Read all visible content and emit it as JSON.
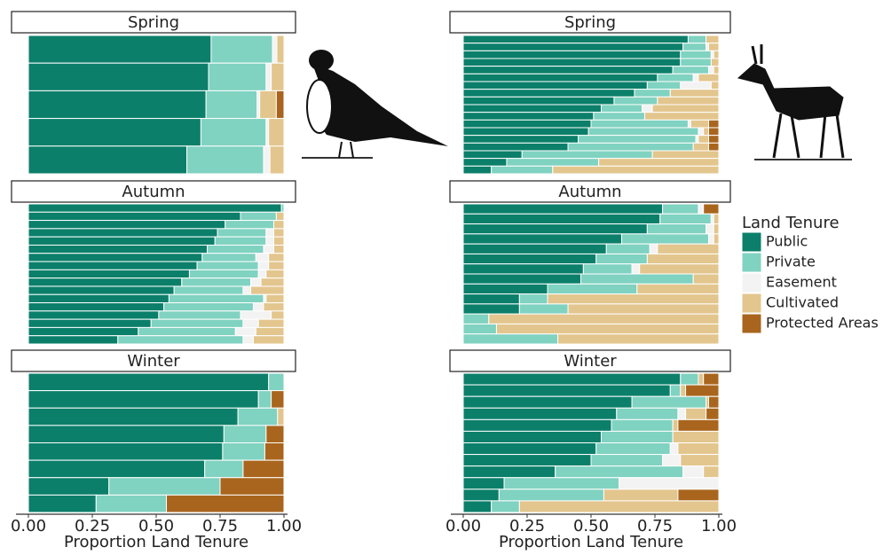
{
  "chart_data": {
    "type": "bar",
    "orientation": "horizontal",
    "stacked": true,
    "xlabel": "Proportion Land Tenure",
    "xlim": [
      0,
      1
    ],
    "xticks": [
      {
        "value": 0,
        "label": "0.00"
      },
      {
        "value": 0.25,
        "label": "0.25"
      },
      {
        "value": 0.5,
        "label": "0.50"
      },
      {
        "value": 0.75,
        "label": "0.75"
      },
      {
        "value": 1,
        "label": "1.00"
      }
    ],
    "legend_title": "Land Tenure",
    "series": [
      {
        "name": "Public",
        "color": "#0b7f6a"
      },
      {
        "name": "Private",
        "color": "#80d2c1"
      },
      {
        "name": "Easement",
        "color": "#f3f3f3"
      },
      {
        "name": "Cultivated",
        "color": "#e3c68e"
      },
      {
        "name": "Protected Areas",
        "color": "#a9651d"
      }
    ],
    "panels": [
      {
        "title": "Spring",
        "bars": [
          [
            0.715,
            0.24,
            0.017,
            0.028,
            0
          ],
          [
            0.705,
            0.225,
            0.02,
            0.05,
            0
          ],
          [
            0.695,
            0.2,
            0.01,
            0.065,
            0.03
          ],
          [
            0.675,
            0.255,
            0.01,
            0.06,
            0
          ],
          [
            0.62,
            0.3,
            0.025,
            0.055,
            0
          ]
        ]
      },
      {
        "title": "Autumn",
        "bars": [
          [
            0.99,
            0.01,
            0,
            0,
            0
          ],
          [
            0.83,
            0.14,
            0,
            0.03,
            0
          ],
          [
            0.77,
            0.19,
            0,
            0.04,
            0
          ],
          [
            0.74,
            0.19,
            0.03,
            0.04,
            0
          ],
          [
            0.73,
            0.2,
            0.03,
            0.04,
            0
          ],
          [
            0.7,
            0.22,
            0.04,
            0.04,
            0
          ],
          [
            0.68,
            0.21,
            0.05,
            0.06,
            0
          ],
          [
            0.66,
            0.24,
            0.04,
            0.06,
            0
          ],
          [
            0.63,
            0.27,
            0.03,
            0.07,
            0
          ],
          [
            0.6,
            0.27,
            0.04,
            0.09,
            0
          ],
          [
            0.57,
            0.27,
            0.03,
            0.13,
            0
          ],
          [
            0.55,
            0.37,
            0.01,
            0.07,
            0
          ],
          [
            0.53,
            0.35,
            0.04,
            0.08,
            0
          ],
          [
            0.51,
            0.32,
            0.12,
            0.05,
            0
          ],
          [
            0.48,
            0.36,
            0.06,
            0.1,
            0
          ],
          [
            0.43,
            0.38,
            0.08,
            0.11,
            0
          ],
          [
            0.35,
            0.49,
            0.04,
            0.12,
            0
          ]
        ]
      },
      {
        "title": "Winter",
        "bars": [
          [
            0.94,
            0.06,
            0,
            0,
            0
          ],
          [
            0.9,
            0.05,
            0,
            0,
            0.05
          ],
          [
            0.82,
            0.155,
            0,
            0.025,
            0
          ],
          [
            0.765,
            0.165,
            0,
            0,
            0.07
          ],
          [
            0.76,
            0.165,
            0,
            0,
            0.075
          ],
          [
            0.69,
            0.15,
            0,
            0,
            0.16
          ],
          [
            0.315,
            0.435,
            0,
            0,
            0.25
          ],
          [
            0.265,
            0.275,
            0,
            0,
            0.46
          ]
        ]
      },
      {
        "title": "Spring",
        "bars": [
          [
            0.88,
            0.07,
            0,
            0.05,
            0
          ],
          [
            0.86,
            0.09,
            0.01,
            0.04,
            0
          ],
          [
            0.85,
            0.12,
            0.01,
            0.02,
            0
          ],
          [
            0.85,
            0.12,
            0,
            0.03,
            0
          ],
          [
            0.82,
            0.14,
            0.02,
            0.02,
            0
          ],
          [
            0.76,
            0.14,
            0.02,
            0.08,
            0
          ],
          [
            0.72,
            0.13,
            0.12,
            0.03,
            0
          ],
          [
            0.67,
            0.14,
            0,
            0.19,
            0
          ],
          [
            0.59,
            0.17,
            0,
            0.24,
            0
          ],
          [
            0.54,
            0.16,
            0.04,
            0.26,
            0
          ],
          [
            0.51,
            0.2,
            0,
            0.29,
            0
          ],
          [
            0.5,
            0.38,
            0.01,
            0.07,
            0.04
          ],
          [
            0.49,
            0.43,
            0.02,
            0.02,
            0.04
          ],
          [
            0.45,
            0.46,
            0.01,
            0.04,
            0.04
          ],
          [
            0.41,
            0.49,
            0,
            0.06,
            0.04
          ],
          [
            0.23,
            0.51,
            0,
            0.26,
            0
          ],
          [
            0.17,
            0.36,
            0,
            0.47,
            0
          ],
          [
            0.11,
            0.24,
            0,
            0.65,
            0
          ]
        ]
      },
      {
        "title": "Autumn",
        "bars": [
          [
            0.78,
            0.14,
            0.02,
            0,
            0.06
          ],
          [
            0.77,
            0.2,
            0.01,
            0.02,
            0
          ],
          [
            0.72,
            0.23,
            0.03,
            0.02,
            0
          ],
          [
            0.62,
            0.34,
            0.02,
            0.02,
            0
          ],
          [
            0.56,
            0.17,
            0.03,
            0.24,
            0
          ],
          [
            0.52,
            0.2,
            0,
            0.28,
            0
          ],
          [
            0.47,
            0.19,
            0.03,
            0.31,
            0
          ],
          [
            0.46,
            0.44,
            0,
            0.1,
            0
          ],
          [
            0.33,
            0.35,
            0,
            0.32,
            0
          ],
          [
            0.22,
            0.11,
            0,
            0.67,
            0
          ],
          [
            0.22,
            0.19,
            0,
            0.59,
            0
          ],
          [
            0,
            0.1,
            0,
            0.9,
            0
          ],
          [
            0,
            0.13,
            0,
            0.87,
            0
          ],
          [
            0,
            0.37,
            0,
            0.63,
            0
          ]
        ]
      },
      {
        "title": "Winter",
        "bars": [
          [
            0.85,
            0.07,
            0,
            0.02,
            0.06
          ],
          [
            0.81,
            0.04,
            0,
            0.02,
            0.13
          ],
          [
            0.66,
            0.29,
            0,
            0.01,
            0.04
          ],
          [
            0.6,
            0.24,
            0.03,
            0.08,
            0.05
          ],
          [
            0.58,
            0.24,
            0,
            0.02,
            0.16
          ],
          [
            0.54,
            0.28,
            0,
            0.18,
            0
          ],
          [
            0.52,
            0.29,
            0.03,
            0.16,
            0
          ],
          [
            0.5,
            0.28,
            0.07,
            0.15,
            0
          ],
          [
            0.36,
            0.5,
            0.08,
            0.06,
            0
          ],
          [
            0.16,
            0.45,
            0.39,
            0,
            0
          ],
          [
            0.14,
            0.41,
            0,
            0.29,
            0.16
          ],
          [
            0.11,
            0.11,
            0,
            0.78,
            0
          ]
        ]
      }
    ]
  }
}
